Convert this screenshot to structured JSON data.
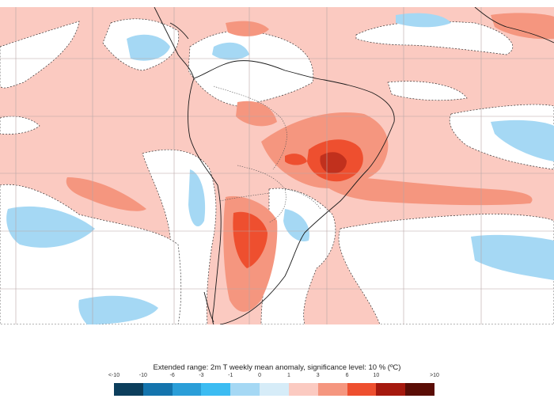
{
  "caption": "Extended range: 2m T weekly mean anomaly, significance level: 10 % (ºC)",
  "legend": {
    "labels": [
      "<-10",
      "-10",
      "-6",
      "-3",
      "-1",
      "0",
      "1",
      "3",
      "6",
      "10",
      ">10"
    ],
    "bins": [
      {
        "range": "<-10",
        "color": "#0c3e5c"
      },
      {
        "range": "-10 to -6",
        "color": "#1474ad"
      },
      {
        "range": "-6 to -3",
        "color": "#2a9ed8"
      },
      {
        "range": "-3 to -1",
        "color": "#3cbcf2"
      },
      {
        "range": "-1 to 0",
        "color": "#a5d8f4"
      },
      {
        "range": "0 to 1",
        "color": "#d6ecf8"
      },
      {
        "range": "1 to 3",
        "color": "#fbcac1"
      },
      {
        "range": "3 to 6",
        "color": "#f5967f"
      },
      {
        "range": "6 to 10",
        "color": "#ee4f2f"
      },
      {
        "range": "10 to >10",
        "color": "#a5190e"
      },
      {
        "range": ">10",
        "color": "#5a0d06"
      }
    ]
  },
  "map": {
    "region": "South America and surrounding oceans",
    "colors": {
      "ocean_warm": "#fbcac1",
      "ocean_cool": "#d6ecf8",
      "cold": "#a5d8f4",
      "warm": "#f5967f",
      "hot": "#ee4f2f",
      "coast": "#1a1a1a",
      "grid": "#b8a6a6"
    }
  }
}
